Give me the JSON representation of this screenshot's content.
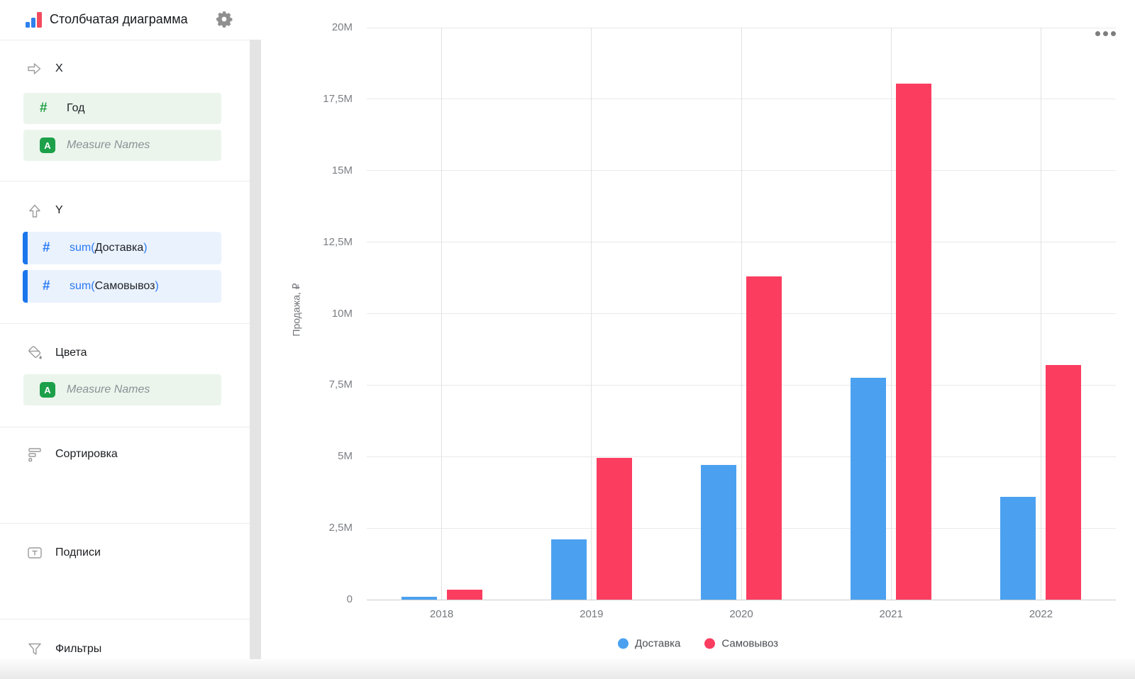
{
  "header": {
    "title": "Столбчатая диаграмма",
    "logo_icon": "bar-chart-icon",
    "settings_icon": "gear-icon"
  },
  "sidebar": {
    "sections": [
      {
        "id": "x",
        "label": "X",
        "icon": "arrow-right-icon",
        "fields": [
          {
            "label": "Год",
            "icon": "hash-icon",
            "style": "green"
          },
          {
            "label": "Measure Names",
            "icon": "a-badge-icon",
            "badge_letter": "A",
            "style": "green-italic"
          }
        ]
      },
      {
        "id": "y",
        "label": "Y",
        "icon": "arrow-up-icon",
        "fields": [
          {
            "prefix": "sum(",
            "name": "Доставка",
            "suffix": ")",
            "icon": "hash-icon",
            "style": "blue"
          },
          {
            "prefix": "sum(",
            "name": "Самовывоз",
            "suffix": ")",
            "icon": "hash-icon",
            "style": "blue"
          }
        ]
      },
      {
        "id": "colors",
        "label": "Цвета",
        "icon": "paint-bucket-icon",
        "fields": [
          {
            "label": "Measure Names",
            "icon": "a-badge-icon",
            "badge_letter": "A",
            "style": "green-italic"
          }
        ]
      },
      {
        "id": "sort",
        "label": "Сортировка",
        "icon": "sort-icon",
        "fields": []
      },
      {
        "id": "labels",
        "label": "Подписи",
        "icon": "text-label-icon",
        "fields": []
      },
      {
        "id": "filters",
        "label": "Фильтры",
        "icon": "filter-funnel-icon",
        "fields": []
      }
    ]
  },
  "chart_menu": {
    "more_icon": "ellipsis-icon"
  },
  "chart_data": {
    "type": "bar",
    "title": "",
    "categories": [
      "2018",
      "2019",
      "2020",
      "2021",
      "2022"
    ],
    "series": [
      {
        "name": "Доставка",
        "color": "#4BA1F0",
        "values_m": [
          0.1,
          2.1,
          4.7,
          7.75,
          3.6
        ]
      },
      {
        "name": "Самовывоз",
        "color": "#FB3D60",
        "values_m": [
          0.35,
          4.95,
          11.3,
          18.05,
          8.2
        ]
      }
    ],
    "xlabel": "",
    "ylabel": "Продажа, ₽",
    "y_unit": "M",
    "ylim_m": [
      0,
      20
    ],
    "yticks": [
      {
        "value_m": 0,
        "label": "0"
      },
      {
        "value_m": 2.5,
        "label": "2,5M"
      },
      {
        "value_m": 5,
        "label": "5M"
      },
      {
        "value_m": 7.5,
        "label": "7,5M"
      },
      {
        "value_m": 10,
        "label": "10M"
      },
      {
        "value_m": 12.5,
        "label": "12,5M"
      },
      {
        "value_m": 15,
        "label": "15M"
      },
      {
        "value_m": 17.5,
        "label": "17,5M"
      },
      {
        "value_m": 20,
        "label": "20M"
      }
    ],
    "grid": true,
    "legend_position": "bottom",
    "legend": [
      "Доставка",
      "Самовывоз"
    ]
  }
}
